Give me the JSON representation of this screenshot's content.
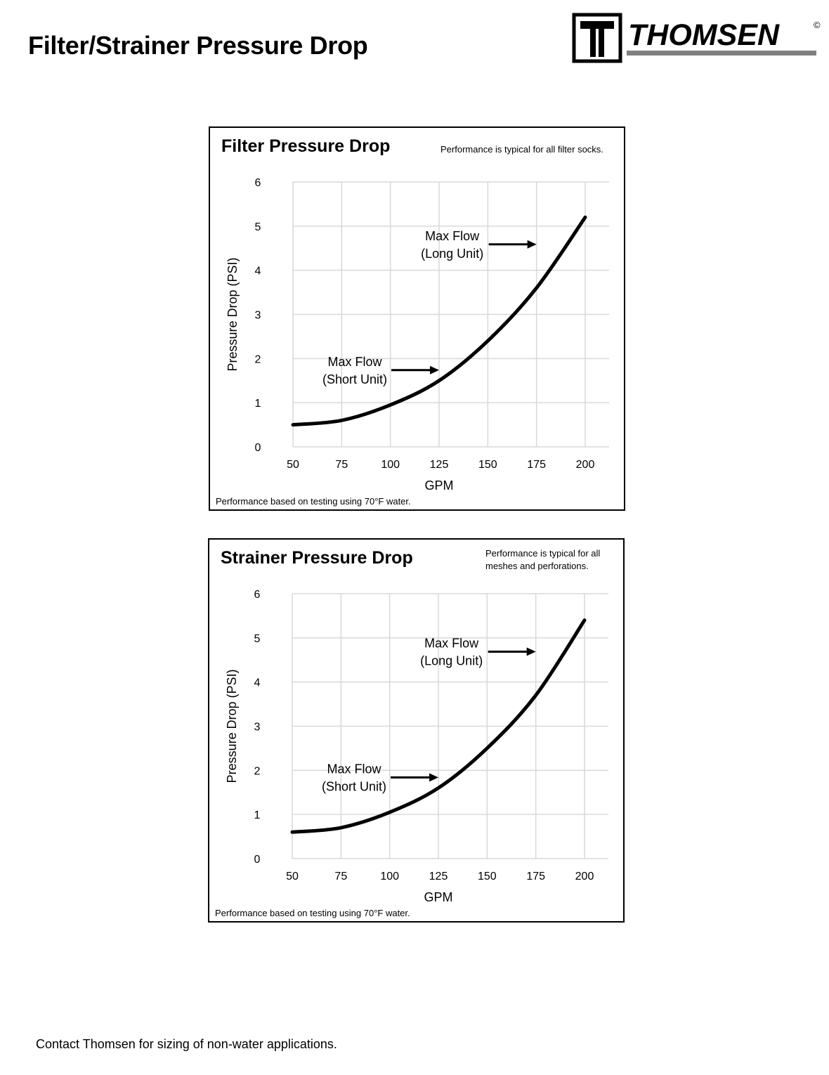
{
  "page": {
    "title": "Filter/Strainer Pressure Drop",
    "footer": "Contact Thomsen for sizing of non-water applications."
  },
  "logo": {
    "text": "THOMSEN",
    "registered": "©",
    "monogram": "T"
  },
  "charts": [
    {
      "title": "Filter Pressure Drop",
      "note": "Performance is typical for all filter socks.",
      "footnote": "Performance based on testing using 70°F water."
    },
    {
      "title": "Strainer Pressure Drop",
      "note_lines": [
        "Performance is typical for all",
        "meshes and perforations."
      ],
      "footnote": "Performance based on testing using 70°F water."
    }
  ],
  "colors": {
    "curve": "#000000",
    "grid": "#d9d9d9",
    "border": "#000000",
    "logo_bar": "#808080"
  },
  "chart_data": [
    {
      "type": "line",
      "title": "Filter Pressure Drop",
      "xlabel": "GPM",
      "ylabel": "Pressure Drop (PSI)",
      "xlim": [
        50,
        200
      ],
      "ylim": [
        0,
        6
      ],
      "x_ticks": [
        50,
        75,
        100,
        125,
        150,
        175,
        200
      ],
      "y_ticks": [
        0,
        1,
        2,
        3,
        4,
        5,
        6
      ],
      "grid": true,
      "x": [
        50,
        75,
        100,
        125,
        150,
        175,
        200
      ],
      "y": [
        0.5,
        0.6,
        0.95,
        1.5,
        2.4,
        3.6,
        5.2
      ],
      "annotations": [
        {
          "lines": [
            "Max Flow",
            "(Short Unit)"
          ],
          "arrow_to": 125,
          "arrow_from": 100
        },
        {
          "lines": [
            "Max Flow",
            "(Long Unit)"
          ],
          "arrow_to": 175,
          "arrow_from": 150
        }
      ]
    },
    {
      "type": "line",
      "title": "Strainer Pressure Drop",
      "xlabel": "GPM",
      "ylabel": "Pressure Drop (PSI)",
      "xlim": [
        50,
        200
      ],
      "ylim": [
        0,
        6
      ],
      "x_ticks": [
        50,
        75,
        100,
        125,
        150,
        175,
        200
      ],
      "y_ticks": [
        0,
        1,
        2,
        3,
        4,
        5,
        6
      ],
      "grid": true,
      "x": [
        50,
        75,
        100,
        125,
        150,
        175,
        200
      ],
      "y": [
        0.6,
        0.7,
        1.05,
        1.6,
        2.5,
        3.7,
        5.4
      ],
      "annotations": [
        {
          "lines": [
            "Max Flow",
            "(Short Unit)"
          ],
          "arrow_to": 125,
          "arrow_from": 100
        },
        {
          "lines": [
            "Max Flow",
            "(Long Unit)"
          ],
          "arrow_to": 175,
          "arrow_from": 150
        }
      ]
    }
  ]
}
